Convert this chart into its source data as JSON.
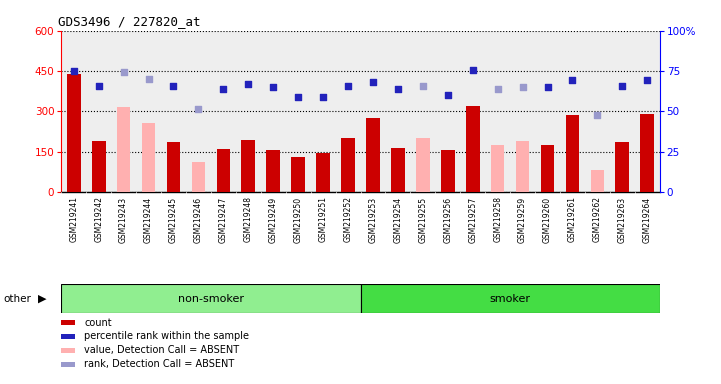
{
  "title": "GDS3496 / 227820_at",
  "samples": [
    "GSM219241",
    "GSM219242",
    "GSM219243",
    "GSM219244",
    "GSM219245",
    "GSM219246",
    "GSM219247",
    "GSM219248",
    "GSM219249",
    "GSM219250",
    "GSM219251",
    "GSM219252",
    "GSM219253",
    "GSM219254",
    "GSM219255",
    "GSM219256",
    "GSM219257",
    "GSM219258",
    "GSM219259",
    "GSM219260",
    "GSM219261",
    "GSM219262",
    "GSM219263",
    "GSM219264"
  ],
  "count_present": [
    440,
    190,
    null,
    null,
    185,
    null,
    160,
    195,
    155,
    130,
    145,
    200,
    275,
    165,
    null,
    155,
    320,
    null,
    null,
    175,
    285,
    null,
    185,
    290
  ],
  "count_absent": [
    null,
    null,
    315,
    255,
    null,
    110,
    null,
    null,
    null,
    null,
    null,
    null,
    null,
    null,
    200,
    null,
    null,
    175,
    190,
    null,
    null,
    80,
    null,
    null
  ],
  "rank_present": [
    450,
    395,
    null,
    null,
    395,
    null,
    385,
    400,
    390,
    355,
    355,
    395,
    410,
    385,
    null,
    360,
    455,
    null,
    null,
    390,
    415,
    null,
    395,
    415
  ],
  "rank_absent": [
    null,
    null,
    445,
    420,
    null,
    310,
    null,
    null,
    null,
    null,
    null,
    null,
    null,
    null,
    395,
    null,
    null,
    385,
    390,
    null,
    null,
    285,
    null,
    null
  ],
  "groups": [
    "non-smoker",
    "non-smoker",
    "non-smoker",
    "non-smoker",
    "non-smoker",
    "non-smoker",
    "non-smoker",
    "non-smoker",
    "non-smoker",
    "non-smoker",
    "non-smoker",
    "non-smoker",
    "smoker",
    "smoker",
    "smoker",
    "smoker",
    "smoker",
    "smoker",
    "smoker",
    "smoker",
    "smoker",
    "smoker",
    "smoker",
    "smoker"
  ],
  "ylim_left": [
    0,
    600
  ],
  "ylim_right": [
    0,
    100
  ],
  "yticks_left": [
    0,
    150,
    300,
    450,
    600
  ],
  "yticks_right": [
    0,
    25,
    50,
    75,
    100
  ],
  "bar_color_present": "#CC0000",
  "bar_color_absent": "#FFB0B0",
  "dot_color_present": "#2222BB",
  "dot_color_absent": "#9999CC",
  "group_colors": {
    "non-smoker": "#90EE90",
    "smoker": "#44DD44"
  },
  "tick_area_bg": "#CCCCCC",
  "plot_bg": "#EEEEEE"
}
